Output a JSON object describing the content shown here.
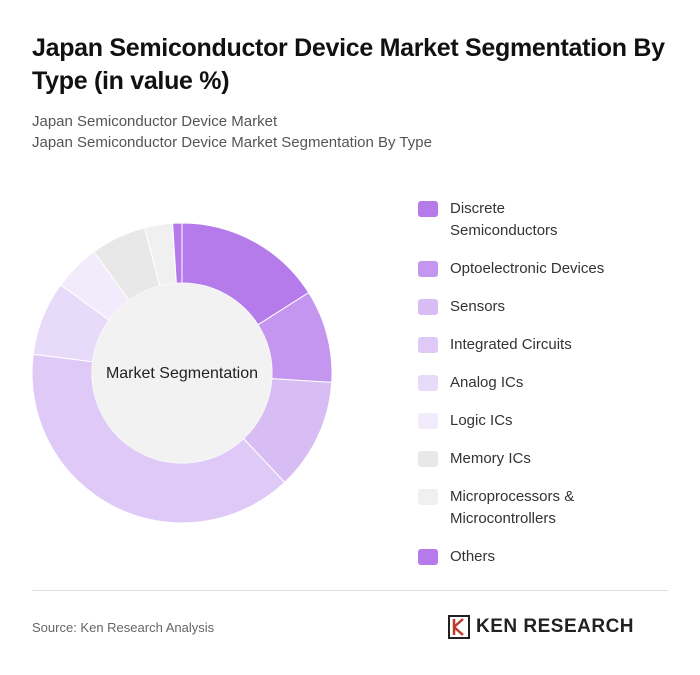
{
  "chart_data": {
    "type": "donut",
    "title": "Japan Semiconductor Device Market Segmentation By Type (in value %)",
    "subtitle": [
      "Japan Semiconductor Device Market",
      "Japan Semiconductor Device Market Segmentation By Type"
    ],
    "center_label": "Market Segmentation",
    "categories": [
      "Discrete Semiconductors",
      "Optoelectronic Devices",
      "Sensors",
      "Integrated Circuits",
      "Analog ICs",
      "Logic ICs",
      "Memory ICs",
      "Microprocessors & Microcontrollers",
      "Others"
    ],
    "values": [
      16,
      10,
      12,
      39,
      8,
      5,
      6,
      3,
      1
    ],
    "colors": [
      "#b57bea",
      "#c496ef",
      "#d8bdf5",
      "#dfcaf7",
      "#e8dbf9",
      "#f2ebfc",
      "#e8e8e8",
      "#f0f0f0",
      "#b57bea"
    ],
    "source": "Source: Ken Research Analysis",
    "logo": "KEN RESEARCH"
  }
}
